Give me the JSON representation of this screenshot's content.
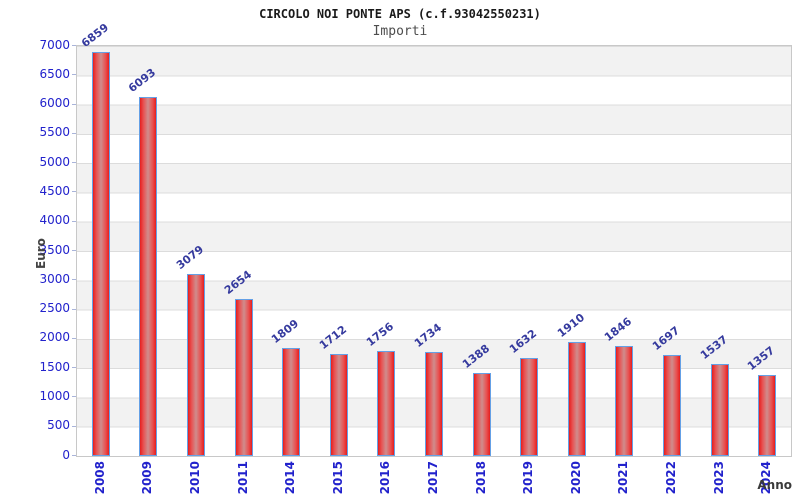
{
  "chart_data": {
    "type": "bar",
    "title": "CIRCOLO NOI PONTE APS (c.f.93042550231)",
    "subtitle": "Importi",
    "xlabel": "Anno",
    "ylabel": "Euro",
    "categories": [
      "2008",
      "2009",
      "2010",
      "2011",
      "2014",
      "2015",
      "2016",
      "2017",
      "2018",
      "2019",
      "2020",
      "2021",
      "2022",
      "2023",
      "2024"
    ],
    "values": [
      6859,
      6093,
      3079,
      2654,
      1809,
      1712,
      1756,
      1734,
      1388,
      1632,
      1910,
      1846,
      1697,
      1537,
      1357
    ],
    "ylim": [
      0,
      7000
    ],
    "ytick_step": 500,
    "grid": true,
    "legend": false,
    "band_fill": "alternating horizontal 500-unit bands",
    "colors": {
      "bar_fill": "#e61e1e",
      "bar_fill_center": "#cf8d8d",
      "bar_border": "#64a0e6",
      "axis_tick_label": "#2222cc",
      "value_label": "#353a9e",
      "band": "#f2f2f2",
      "gridline": "#dcdcdc",
      "title": "#1a1a1a",
      "subtitle": "#4d4d4d"
    }
  }
}
